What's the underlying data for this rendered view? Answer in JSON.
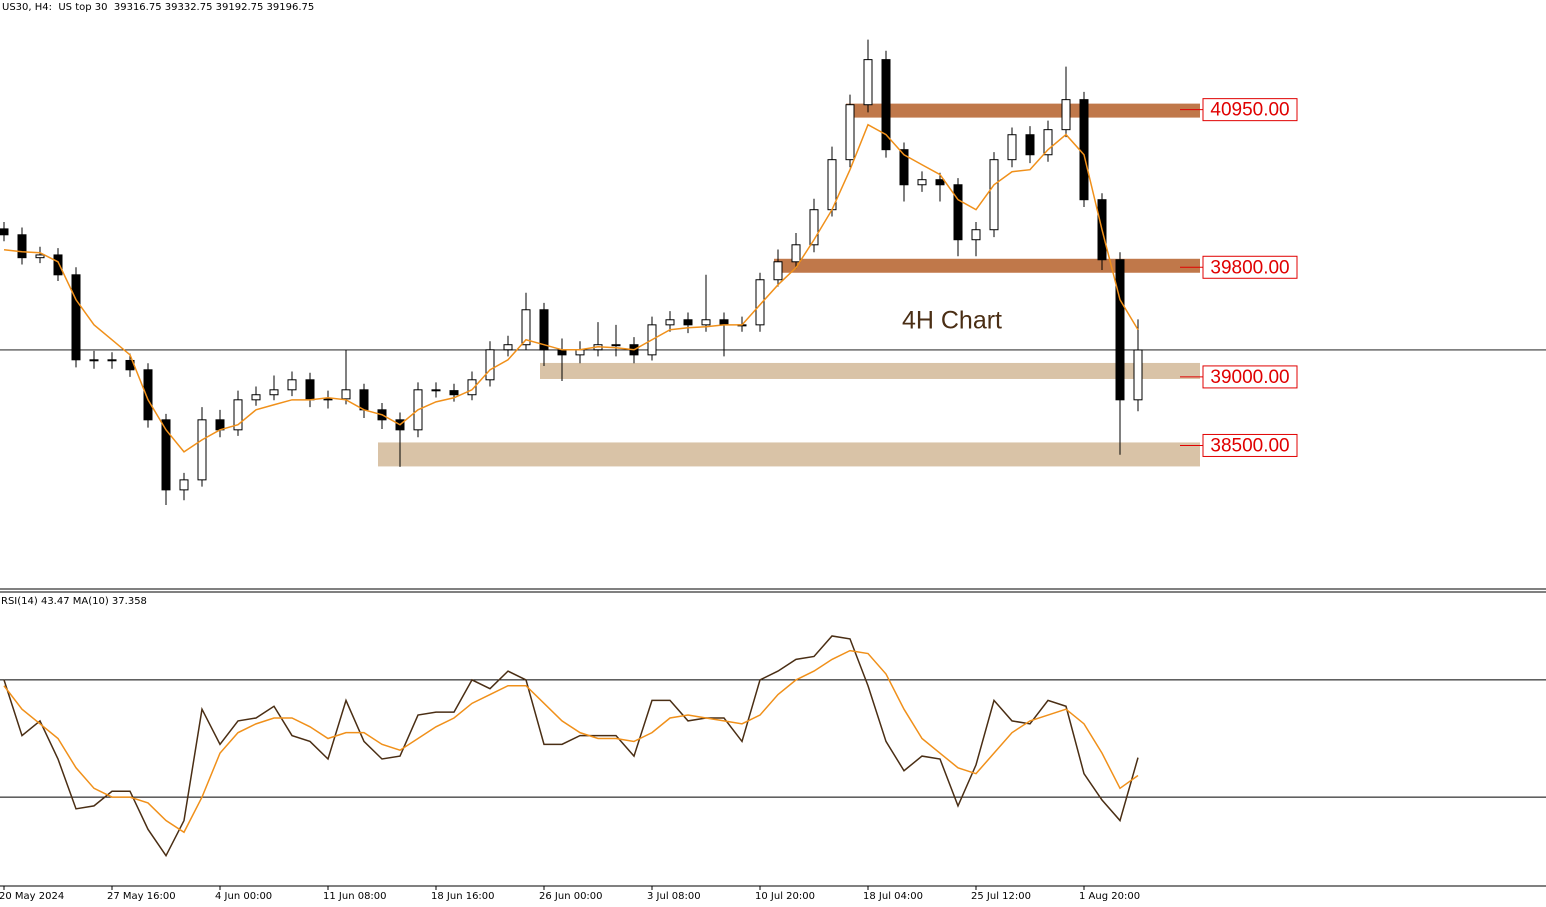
{
  "chart_data": [
    {
      "type": "candlestick",
      "title": "US30, H4:  US top 30  39316.75 39332.75 39192.75 39196.75",
      "annotation": "4H Chart",
      "categories": [
        "20 May 2024",
        null,
        null,
        null,
        null,
        null,
        "27 May 16:00",
        null,
        null,
        null,
        null,
        null,
        "4 Jun 00:00",
        null,
        null,
        null,
        null,
        null,
        "11 Jun 08:00",
        null,
        null,
        null,
        null,
        null,
        "18 Jun 16:00",
        null,
        null,
        null,
        null,
        null,
        "26 Jun 00:00",
        null,
        null,
        null,
        null,
        null,
        "3 Jul 08:00",
        null,
        null,
        null,
        null,
        null,
        "10 Jul 20:00",
        null,
        null,
        null,
        null,
        null,
        "18 Jul 04:00",
        null,
        null,
        null,
        null,
        null,
        "25 Jul 12:00",
        null,
        null,
        null,
        null,
        null,
        "1 Aug 20:00",
        null,
        null,
        null
      ],
      "ohlc": [
        [
          40080,
          40130,
          39990,
          40037
        ],
        [
          40037,
          40090,
          39820,
          39870
        ],
        [
          39870,
          39950,
          39830,
          39890
        ],
        [
          39890,
          39940,
          39700,
          39745
        ],
        [
          39745,
          39800,
          39070,
          39125
        ],
        [
          39125,
          39190,
          39060,
          39125
        ],
        [
          39125,
          39180,
          39060,
          39120
        ],
        [
          39120,
          39170,
          39000,
          39052
        ],
        [
          39052,
          39100,
          38630,
          38687
        ],
        [
          38687,
          38730,
          38066,
          38176
        ],
        [
          38176,
          38300,
          38100,
          38249
        ],
        [
          38249,
          38780,
          38200,
          38687
        ],
        [
          38687,
          38760,
          38560,
          38614
        ],
        [
          38614,
          38900,
          38570,
          38833
        ],
        [
          38833,
          38930,
          38790,
          38870
        ],
        [
          38870,
          39010,
          38830,
          38906
        ],
        [
          38906,
          39040,
          38860,
          38979
        ],
        [
          38979,
          39030,
          38780,
          38833
        ],
        [
          38833,
          38900,
          38770,
          38840
        ],
        [
          38840,
          39200,
          38800,
          38906
        ],
        [
          38906,
          38950,
          38700,
          38760
        ],
        [
          38760,
          38810,
          38620,
          38687
        ],
        [
          38687,
          38740,
          38344,
          38614
        ],
        [
          38614,
          38960,
          38560,
          38906
        ],
        [
          38906,
          38960,
          38850,
          38900
        ],
        [
          38900,
          38950,
          38820,
          38870
        ],
        [
          38870,
          39040,
          38830,
          38979
        ],
        [
          38979,
          39260,
          38930,
          39198
        ],
        [
          39198,
          39300,
          39150,
          39235
        ],
        [
          39235,
          39614,
          39200,
          39490
        ],
        [
          39490,
          39540,
          39080,
          39198
        ],
        [
          39198,
          39280,
          38970,
          39161
        ],
        [
          39161,
          39260,
          39100,
          39198
        ],
        [
          39198,
          39400,
          39150,
          39235
        ],
        [
          39235,
          39380,
          39150,
          39235
        ],
        [
          39235,
          39290,
          39100,
          39161
        ],
        [
          39161,
          39440,
          39120,
          39380
        ],
        [
          39380,
          39480,
          39330,
          39417
        ],
        [
          39417,
          39470,
          39320,
          39380
        ],
        [
          39380,
          39745,
          39330,
          39417
        ],
        [
          39417,
          39470,
          39150,
          39380
        ],
        [
          39380,
          39440,
          39330,
          39380
        ],
        [
          39380,
          39760,
          39330,
          39709
        ],
        [
          39709,
          39930,
          39660,
          39840
        ],
        [
          39840,
          40050,
          39790,
          39964
        ],
        [
          39964,
          40300,
          39910,
          40220
        ],
        [
          40220,
          40680,
          40170,
          40585
        ],
        [
          40585,
          41060,
          40530,
          40986
        ],
        [
          40986,
          41461,
          40930,
          41315
        ],
        [
          41315,
          41380,
          40600,
          40658
        ],
        [
          40658,
          40710,
          40280,
          40402
        ],
        [
          40402,
          40500,
          40350,
          40439
        ],
        [
          40439,
          40490,
          40280,
          40402
        ],
        [
          40402,
          40450,
          39880,
          40001
        ],
        [
          40001,
          40130,
          39880,
          40074
        ],
        [
          40074,
          40640,
          40020,
          40585
        ],
        [
          40585,
          40820,
          40530,
          40767
        ],
        [
          40767,
          40830,
          40560,
          40621
        ],
        [
          40621,
          40870,
          40570,
          40804
        ],
        [
          40804,
          41264,
          40750,
          41023
        ],
        [
          41023,
          41080,
          40240,
          40293
        ],
        [
          40293,
          40340,
          39780,
          39855
        ],
        [
          39855,
          39910,
          38432,
          38833
        ],
        [
          38833,
          39420,
          38750,
          39196.75
        ]
      ],
      "ma": {
        "color": "#f0901a",
        "values": [
          39928,
          39913,
          39906,
          39840,
          39563,
          39380,
          39271,
          39161,
          38833,
          38614,
          38453,
          38541,
          38614,
          38651,
          38760,
          38797,
          38833,
          38833,
          38848,
          38833,
          38760,
          38724,
          38651,
          38760,
          38818,
          38848,
          38906,
          39052,
          39125,
          39271,
          39235,
          39198,
          39198,
          39220,
          39213,
          39198,
          39271,
          39344,
          39359,
          39366,
          39380,
          39380,
          39527,
          39672,
          39797,
          40001,
          40220,
          40512,
          40840,
          40768,
          40621,
          40548,
          40476,
          40293,
          40220,
          40402,
          40497,
          40512,
          40658,
          40768,
          40621,
          40074,
          39563,
          39344
        ]
      },
      "zones": [
        {
          "label": "40950.00",
          "level": 40950,
          "top": 40994,
          "bottom": 40892,
          "start": 47,
          "color": "#c0784a"
        },
        {
          "label": "39800.00",
          "level": 39800,
          "top": 39862,
          "bottom": 39760,
          "start": 43,
          "color": "#c0784a"
        },
        {
          "label": "39000.00",
          "level": 39000,
          "top": 39102,
          "bottom": 38985,
          "start": 30,
          "color": "#d9c3a7"
        },
        {
          "label": "38500.00",
          "level": 38500,
          "top": 38522,
          "bottom": 38347,
          "start": 21,
          "color": "#d9c3a7"
        }
      ],
      "ylim": [
        37460,
        41750
      ]
    },
    {
      "type": "line",
      "title": "RSI(14) 43.47 MA(10) 37.358",
      "series": [
        {
          "color": "#4a2e14",
          "values": [
            70,
            51,
            56,
            43,
            26,
            27,
            32,
            32,
            19,
            10,
            22,
            60,
            48,
            56,
            57,
            61,
            51,
            49,
            43,
            63,
            49,
            43,
            44,
            58,
            59,
            59,
            70,
            67,
            73,
            70,
            48,
            48,
            51,
            51,
            51,
            44,
            63,
            63,
            56,
            57,
            57,
            49,
            70,
            73,
            77,
            78,
            85,
            84,
            68,
            49,
            39,
            44,
            43,
            27,
            41,
            63,
            56,
            55,
            63,
            61,
            38,
            29,
            22,
            43.47
          ]
        },
        {
          "color": "#f0901a",
          "values": [
            68,
            60,
            55,
            50,
            40,
            33,
            30,
            30,
            28,
            22,
            18,
            30,
            45,
            52,
            55,
            57,
            57,
            54,
            50,
            52,
            52,
            48,
            46,
            50,
            54,
            57,
            62,
            65,
            68,
            68,
            62,
            56,
            52,
            50,
            50,
            49,
            52,
            57,
            58,
            57,
            56,
            55,
            58,
            65,
            70,
            73,
            77,
            80,
            79,
            72,
            60,
            50,
            45,
            40,
            38,
            45,
            52,
            56,
            58,
            60,
            55,
            45,
            33,
            37.358
          ]
        }
      ],
      "levels": [
        70,
        30
      ],
      "ylim": [
        0,
        100
      ]
    }
  ]
}
